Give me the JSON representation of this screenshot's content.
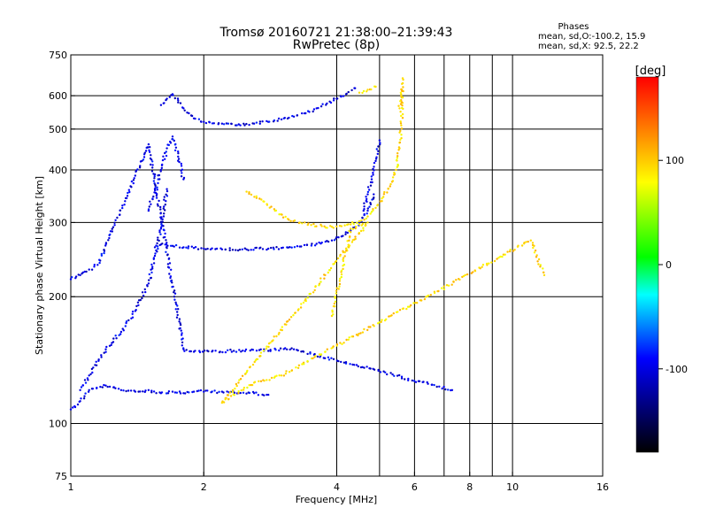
{
  "chart_data": {
    "type": "scatter",
    "title": "Tromsø 20160721 21:38:00–21:39:43",
    "subtitle": "RwPretec (8p)",
    "xlabel": "Frequency [MHz]",
    "ylabel": "Stationary phase Virtual Height [km]",
    "x_scale": "log",
    "y_scale": "log",
    "xlim": [
      1,
      16
    ],
    "ylim": [
      75,
      750
    ],
    "x_ticks": [
      1,
      2,
      4,
      6,
      8,
      10,
      16
    ],
    "x_tick_labels": [
      "1",
      "2",
      "4",
      "6",
      "8",
      "10",
      "16"
    ],
    "x_gridlines": [
      2,
      4,
      5,
      6,
      7,
      8,
      9,
      10
    ],
    "y_ticks": [
      75,
      100,
      200,
      300,
      400,
      500,
      600,
      750
    ],
    "y_tick_labels": [
      "75",
      "100",
      "200",
      "300",
      "400",
      "500",
      "600",
      "750"
    ],
    "y_gridlines": [
      100,
      200,
      300,
      400,
      500,
      600
    ],
    "grid": true,
    "stats": {
      "title": "Phases",
      "line_o": "mean, sd,O:-100.2, 15.9",
      "line_x": "mean, sd,X:  92.5, 22.2"
    },
    "colorbar": {
      "label": "[deg]",
      "range": [
        -180,
        180
      ],
      "ticks": [
        100,
        0,
        -100
      ],
      "tick_labels": [
        "100",
        "0",
        "-100"
      ],
      "colors": [
        "#ff0000",
        "#ff8800",
        "#ffff00",
        "#00ff00",
        "#00ffff",
        "#0000ff",
        "#000000"
      ]
    },
    "series": [
      {
        "mode": "O",
        "phase_deg": -100,
        "traces": [
          {
            "x": [
              1.0,
              1.05,
              1.1,
              1.2,
              1.3,
              1.4,
              1.5,
              1.6,
              1.7,
              1.8,
              1.9,
              2.0,
              2.2,
              2.4,
              2.6,
              2.8
            ],
            "y": [
              108,
              113,
              120,
              123,
              120,
              119,
              120,
              118,
              119,
              118,
              119,
              119,
              119,
              118,
              118,
              117
            ]
          },
          {
            "x": [
              1.05,
              1.1,
              1.2,
              1.3,
              1.4,
              1.5,
              1.55,
              1.6,
              1.65
            ],
            "y": [
              120,
              130,
              150,
              165,
              185,
              215,
              250,
              290,
              360
            ]
          },
          {
            "x": [
              1.5,
              1.55,
              1.6,
              1.65,
              1.7,
              1.75,
              1.8
            ],
            "y": [
              320,
              360,
              400,
              450,
              480,
              430,
              380
            ]
          },
          {
            "x": [
              1.55,
              1.6,
              1.7,
              1.8,
              1.9,
              2.0,
              2.2,
              2.5,
              2.8,
              3.0,
              3.3,
              3.6,
              3.9,
              4.1,
              4.3,
              4.5,
              4.7,
              4.85
            ],
            "y": [
              262,
              266,
              264,
              262,
              261,
              260,
              259,
              259,
              260,
              261,
              263,
              267,
              272,
              278,
              287,
              300,
              320,
              350
            ]
          },
          {
            "x": [
              4.6,
              4.7,
              4.8,
              4.9,
              5.0
            ],
            "y": [
              320,
              350,
              380,
              420,
              470
            ]
          },
          {
            "x": [
              1.6,
              1.65,
              1.7,
              1.75,
              1.8,
              1.85,
              1.9,
              2.0,
              2.2,
              2.4,
              2.6,
              2.8,
              3.0,
              3.2,
              3.4,
              3.6,
              3.8,
              4.0,
              4.2,
              4.4
            ],
            "y": [
              570,
              590,
              605,
              585,
              560,
              545,
              530,
              520,
              515,
              513,
              515,
              520,
              527,
              535,
              545,
              560,
              575,
              590,
              605,
              625
            ]
          },
          {
            "x": [
              1.0,
              1.05,
              1.1,
              1.15,
              1.5,
              1.8,
              1.9,
              3.2,
              7.3
            ],
            "y": [
              220,
              225,
              232,
              238,
              460,
              150,
              148,
              150,
              120
            ]
          }
        ]
      },
      {
        "mode": "X",
        "phase_deg": 92,
        "traces": [
          {
            "x": [
              2.5,
              2.7,
              2.9,
              3.1,
              3.3,
              3.5,
              3.7,
              3.9,
              4.1,
              4.3,
              4.5,
              4.7,
              4.9,
              5.1,
              5.3,
              5.45,
              5.55,
              5.6,
              5.62
            ],
            "y": [
              355,
              340,
              320,
              306,
              300,
              296,
              294,
              293,
              294,
              297,
              302,
              310,
              325,
              345,
              370,
              400,
              450,
              510,
              620
            ]
          },
          {
            "x": [
              5.55,
              5.6,
              5.62,
              5.64
            ],
            "y": [
              560,
              600,
              640,
              660
            ]
          },
          {
            "x": [
              4.5,
              4.7,
              4.9
            ],
            "y": [
              610,
              620,
              630
            ]
          },
          {
            "x": [
              3.9,
              4.3,
              4.7,
              2.2,
              2.6,
              3.0,
              11.0,
              11.8
            ],
            "y": [
              180,
              290,
              300,
              112,
              125,
              130,
              272,
              225
            ]
          }
        ]
      }
    ]
  }
}
